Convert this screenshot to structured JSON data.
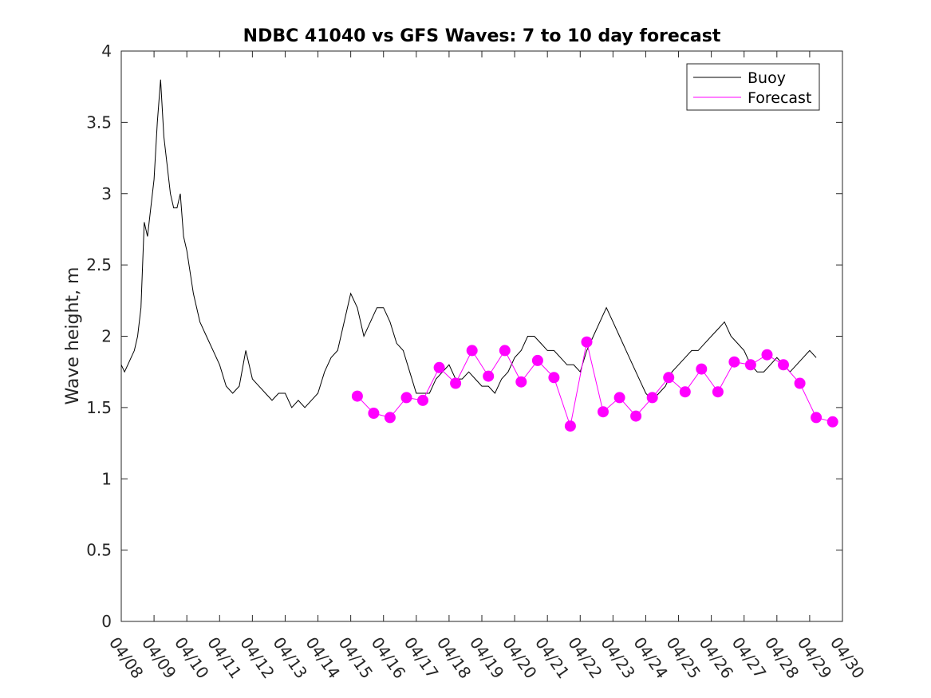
{
  "chart_data": {
    "type": "line",
    "title": "NDBC 41040 vs GFS Waves: 7 to 10 day forecast",
    "xlabel": "",
    "ylabel": "Wave height, m",
    "xlim": [
      "04/08",
      "04/30"
    ],
    "ylim": [
      0,
      4
    ],
    "x_tick_labels": [
      "04/08",
      "04/09",
      "04/10",
      "04/11",
      "04/12",
      "04/13",
      "04/14",
      "04/15",
      "04/16",
      "04/17",
      "04/18",
      "04/19",
      "04/20",
      "04/21",
      "04/22",
      "04/23",
      "04/24",
      "04/25",
      "04/26",
      "04/27",
      "04/28",
      "04/29",
      "04/30"
    ],
    "y_tick_labels": [
      "0",
      "0.5",
      "1",
      "1.5",
      "2",
      "2.5",
      "3",
      "3.5",
      "4"
    ],
    "legend": {
      "position": "top-right",
      "entries": [
        "Buoy",
        "Forecast"
      ]
    },
    "colors": {
      "buoy": "#000000",
      "forecast": "#ff00ff"
    },
    "series": [
      {
        "name": "Buoy",
        "x_day": [
          0,
          0.1,
          0.2,
          0.3,
          0.4,
          0.5,
          0.6,
          0.7,
          0.8,
          0.9,
          1.0,
          1.1,
          1.2,
          1.3,
          1.4,
          1.5,
          1.6,
          1.7,
          1.8,
          1.9,
          2.0,
          2.2,
          2.4,
          2.6,
          2.8,
          3.0,
          3.2,
          3.4,
          3.6,
          3.8,
          4.0,
          4.2,
          4.4,
          4.6,
          4.8,
          5.0,
          5.2,
          5.4,
          5.6,
          5.8,
          6.0,
          6.2,
          6.4,
          6.6,
          6.8,
          7.0,
          7.2,
          7.4,
          7.6,
          7.8,
          8.0,
          8.2,
          8.4,
          8.6,
          8.8,
          9.0,
          9.2,
          9.4,
          9.6,
          9.8,
          10.0,
          10.2,
          10.4,
          10.6,
          10.8,
          11.0,
          11.2,
          11.4,
          11.6,
          11.8,
          12.0,
          12.2,
          12.4,
          12.6,
          12.8,
          13.0,
          13.2,
          13.4,
          13.6,
          13.8,
          14.0,
          14.2,
          14.4,
          14.6,
          14.8,
          15.0,
          15.2,
          15.4,
          15.6,
          15.8,
          16.0,
          16.2,
          16.4,
          16.6,
          16.8,
          17.0,
          17.2,
          17.4,
          17.6,
          17.8,
          18.0,
          18.2,
          18.4,
          18.6,
          18.8,
          19.0,
          19.2,
          19.4,
          19.6,
          19.8,
          20.0,
          20.2,
          20.4,
          20.6,
          20.8,
          21.0,
          21.2
        ],
        "values": [
          1.8,
          1.75,
          1.8,
          1.85,
          1.9,
          2.0,
          2.2,
          2.8,
          2.7,
          2.9,
          3.1,
          3.5,
          3.8,
          3.4,
          3.2,
          3.0,
          2.9,
          2.9,
          3.0,
          2.7,
          2.6,
          2.3,
          2.1,
          2.0,
          1.9,
          1.8,
          1.65,
          1.6,
          1.65,
          1.9,
          1.7,
          1.65,
          1.6,
          1.55,
          1.6,
          1.6,
          1.5,
          1.55,
          1.5,
          1.55,
          1.6,
          1.75,
          1.85,
          1.9,
          2.1,
          2.3,
          2.2,
          2.0,
          2.1,
          2.2,
          2.2,
          2.1,
          1.95,
          1.9,
          1.75,
          1.6,
          1.6,
          1.6,
          1.7,
          1.75,
          1.8,
          1.7,
          1.7,
          1.75,
          1.7,
          1.65,
          1.65,
          1.6,
          1.7,
          1.75,
          1.85,
          1.9,
          2.0,
          2.0,
          1.95,
          1.9,
          1.9,
          1.85,
          1.8,
          1.8,
          1.75,
          1.9,
          2.0,
          2.1,
          2.2,
          2.1,
          2.0,
          1.9,
          1.8,
          1.7,
          1.6,
          1.55,
          1.6,
          1.65,
          1.75,
          1.8,
          1.85,
          1.9,
          1.9,
          1.95,
          2.0,
          2.05,
          2.1,
          2.0,
          1.95,
          1.9,
          1.8,
          1.75,
          1.75,
          1.8,
          1.85,
          1.8,
          1.75,
          1.8,
          1.85,
          1.9,
          1.85
        ]
      },
      {
        "name": "Forecast",
        "x_day": [
          7.2,
          7.7,
          8.2,
          8.7,
          9.2,
          9.7,
          10.2,
          10.7,
          11.2,
          11.7,
          12.2,
          12.7,
          13.2,
          13.7,
          14.2,
          14.7,
          15.2,
          15.7,
          16.2,
          16.7,
          17.2,
          17.7,
          18.2,
          18.7,
          19.2,
          19.7,
          20.2,
          20.7,
          21.2,
          21.7
        ],
        "values": [
          1.58,
          1.46,
          1.43,
          1.57,
          1.55,
          1.78,
          1.67,
          1.9,
          1.72,
          1.9,
          1.68,
          1.83,
          1.71,
          1.37,
          1.96,
          1.47,
          1.57,
          1.44,
          1.57,
          1.71,
          1.61,
          1.77,
          1.61,
          1.82,
          1.8,
          1.87,
          1.8,
          1.67,
          1.43,
          1.4
        ]
      }
    ]
  }
}
